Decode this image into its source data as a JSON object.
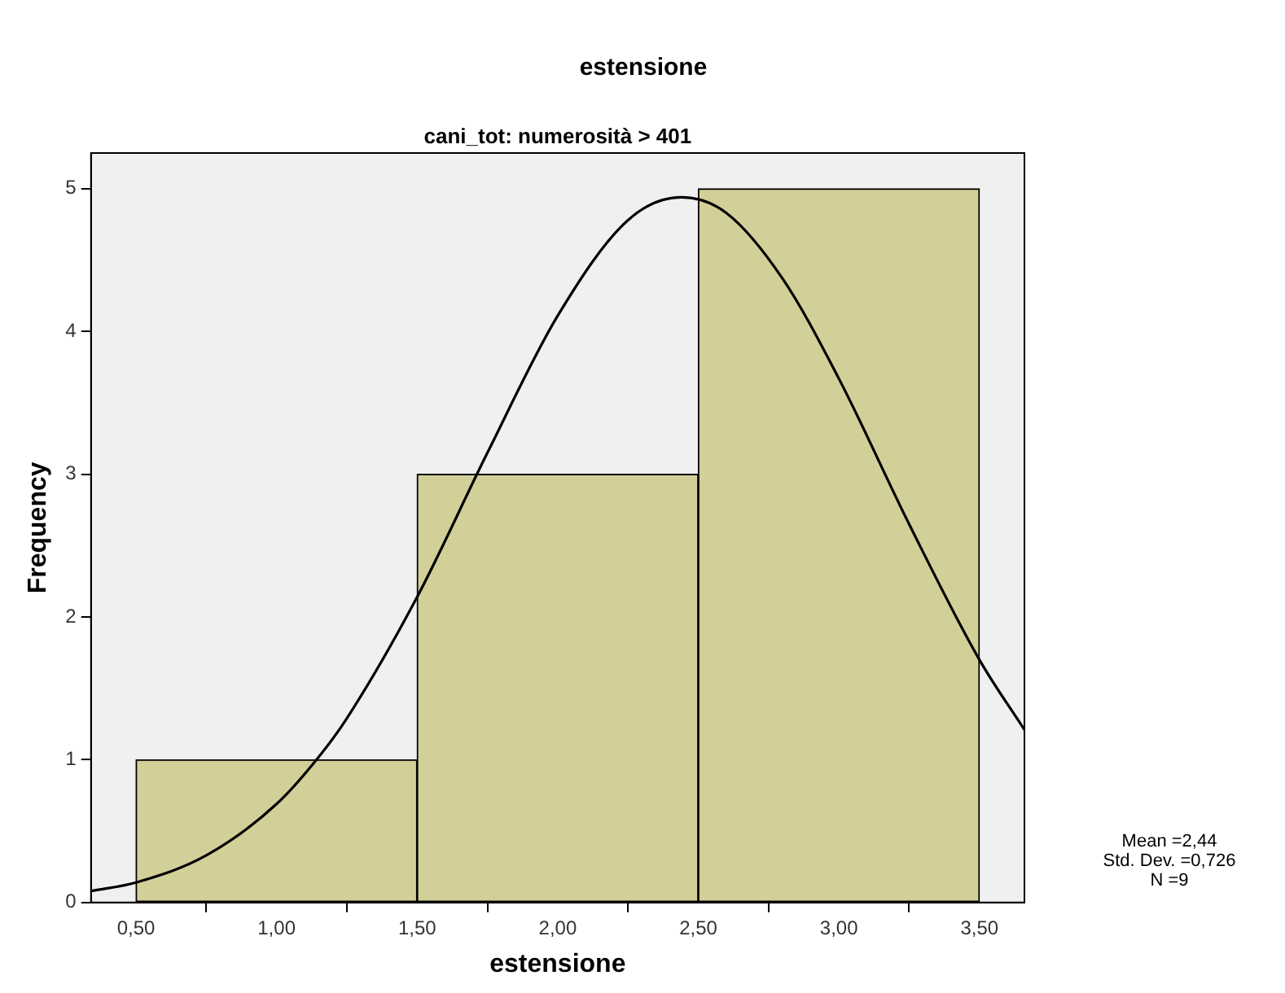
{
  "chart_data": {
    "type": "histogram",
    "title": "estensione",
    "subtitle": "cani_tot: numerosità > 401",
    "xlabel": "estensione",
    "ylabel": "Frequency",
    "bins": [
      0.5,
      1.5,
      2.5,
      3.5
    ],
    "values": [
      1,
      3,
      5
    ],
    "color": "#d3cf98",
    "series": [
      {
        "type": "line",
        "color": "#000000",
        "x": [
          0.34,
          0.5,
          0.75,
          1.0,
          1.15,
          1.25,
          1.5,
          1.75,
          2.0,
          2.25,
          2.44,
          2.6,
          2.8,
          3.0,
          3.25,
          3.5,
          3.66
        ],
        "values": [
          0.08,
          0.14,
          0.33,
          0.69,
          1.02,
          1.29,
          2.14,
          3.15,
          4.11,
          4.78,
          4.94,
          4.83,
          4.37,
          3.67,
          2.65,
          1.7,
          1.21
        ]
      }
    ],
    "xlim": [
      0.34,
      3.66
    ],
    "ylim": [
      0,
      5.25
    ],
    "xticks": [
      {
        "value": 0.5,
        "label": "0,50"
      },
      {
        "value": 1,
        "label": "1,00"
      },
      {
        "value": 1.5,
        "label": "1,50"
      },
      {
        "value": 2,
        "label": "2,00"
      },
      {
        "value": 2.5,
        "label": "2,50"
      },
      {
        "value": 3,
        "label": "3,00"
      },
      {
        "value": 3.5,
        "label": "3,50"
      }
    ],
    "yticks": [
      0,
      1,
      2,
      3,
      4,
      5
    ],
    "annotations": [
      "Mean =2,44",
      "Std. Dev. =0,726",
      "N =9"
    ],
    "grid": false,
    "legend": false,
    "marker": "none",
    "line_style": "solid"
  }
}
